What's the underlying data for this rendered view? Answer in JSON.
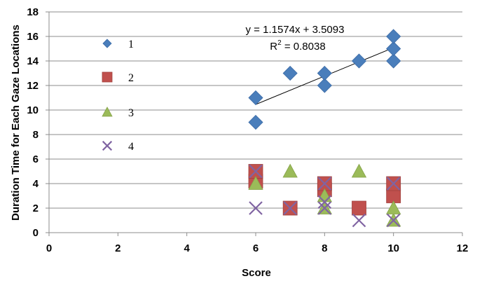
{
  "chart_data": {
    "type": "scatter",
    "title": "",
    "xlabel": "Score",
    "ylabel": "Duration Time for Each Gaze Locations",
    "xlim": [
      0,
      12
    ],
    "ylim": [
      0,
      18
    ],
    "x_ticks": [
      0,
      2,
      4,
      6,
      8,
      10,
      12
    ],
    "y_ticks": [
      0,
      2,
      4,
      6,
      8,
      10,
      12,
      14,
      16,
      18
    ],
    "grid": "horizontal",
    "legend_position": "left",
    "series": [
      {
        "name": "1",
        "marker": "diamond",
        "color": "#4A7EBB",
        "points": [
          [
            6,
            9
          ],
          [
            6,
            11
          ],
          [
            7,
            13
          ],
          [
            8,
            12
          ],
          [
            8,
            13
          ],
          [
            9,
            14
          ],
          [
            10,
            14
          ],
          [
            10,
            15
          ],
          [
            10,
            16
          ]
        ]
      },
      {
        "name": "2",
        "marker": "square",
        "color": "#C0504D",
        "points": [
          [
            6,
            4.2
          ],
          [
            6,
            5
          ],
          [
            7,
            2
          ],
          [
            8,
            3.5
          ],
          [
            8,
            4
          ],
          [
            9,
            2
          ],
          [
            10,
            3
          ],
          [
            10,
            4
          ]
        ]
      },
      {
        "name": "3",
        "marker": "triangle",
        "color": "#9BBB59",
        "points": [
          [
            6,
            4
          ],
          [
            7,
            5
          ],
          [
            8,
            2
          ],
          [
            8,
            3
          ],
          [
            9,
            5
          ],
          [
            10,
            1
          ],
          [
            10,
            2
          ]
        ]
      },
      {
        "name": "4",
        "marker": "x",
        "color": "#8064A2",
        "points": [
          [
            6,
            2
          ],
          [
            6,
            5
          ],
          [
            7,
            2
          ],
          [
            8,
            2
          ],
          [
            8,
            2.5
          ],
          [
            8,
            4
          ],
          [
            9,
            1
          ],
          [
            10,
            1
          ],
          [
            10,
            4
          ]
        ]
      }
    ],
    "trendline": {
      "series": "1",
      "slope": 1.1574,
      "intercept": 3.5093,
      "x_range": [
        6,
        10
      ],
      "equation": "y = 1.1574x + 3.5093",
      "r2_label": "R",
      "r2_exp": "2",
      "r2_value": " = 0.8038"
    }
  }
}
